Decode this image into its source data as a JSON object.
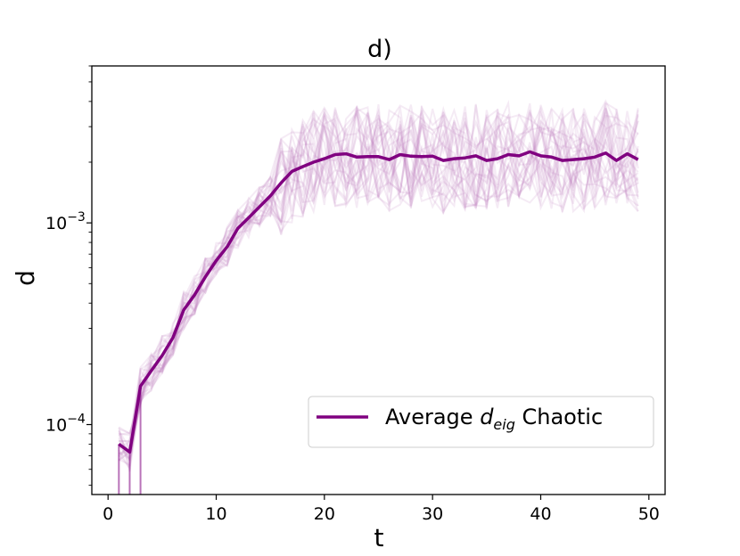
{
  "chart_data": {
    "type": "line",
    "title": "d)",
    "xlabel": "t",
    "ylabel": "d",
    "xlim": [
      -1.5,
      51.5
    ],
    "ylim": [
      4.5e-05,
      0.006
    ],
    "yscale": "log",
    "grid": false,
    "x_ticks": [
      0,
      10,
      20,
      30,
      40,
      50
    ],
    "x_tick_labels": [
      "0",
      "10",
      "20",
      "30",
      "40",
      "50"
    ],
    "y_ticks": [
      0.0001,
      0.001
    ],
    "y_tick_labels": [
      {
        "base": "10",
        "exp": "−4"
      },
      {
        "base": "10",
        "exp": "−3"
      }
    ],
    "legend": {
      "location": "lower-right",
      "prefix": "Average ",
      "math": "d",
      "sub": "eig",
      "suffix": " Chaotic"
    },
    "colors": {
      "series": "#800080",
      "faint": "#c080c0"
    },
    "series": [
      {
        "name": "Average d_eig Chaotic",
        "x": [
          1,
          2,
          3,
          4,
          5,
          6,
          7,
          8,
          9,
          10,
          11,
          12,
          13,
          14,
          15,
          16,
          17,
          18,
          19,
          20,
          21,
          22,
          23,
          24,
          25,
          26,
          27,
          28,
          29,
          30,
          31,
          32,
          33,
          34,
          35,
          36,
          37,
          38,
          39,
          40,
          41,
          42,
          43,
          44,
          45,
          46,
          47,
          48,
          49
        ],
        "values": [
          8e-05,
          7.3e-05,
          0.000155,
          0.000185,
          0.00022,
          0.00027,
          0.00037,
          0.00044,
          0.00054,
          0.00065,
          0.00076,
          0.00094,
          0.00106,
          0.0012,
          0.00136,
          0.00158,
          0.0018,
          0.0019,
          0.002,
          0.00208,
          0.00218,
          0.0022,
          0.00212,
          0.00213,
          0.00213,
          0.00206,
          0.00218,
          0.00214,
          0.00213,
          0.00214,
          0.00204,
          0.00208,
          0.0021,
          0.00215,
          0.00204,
          0.00208,
          0.00218,
          0.00215,
          0.00225,
          0.00215,
          0.00212,
          0.00204,
          0.00206,
          0.00208,
          0.00212,
          0.00222,
          0.00204,
          0.0022,
          0.00206
        ]
      }
    ]
  }
}
